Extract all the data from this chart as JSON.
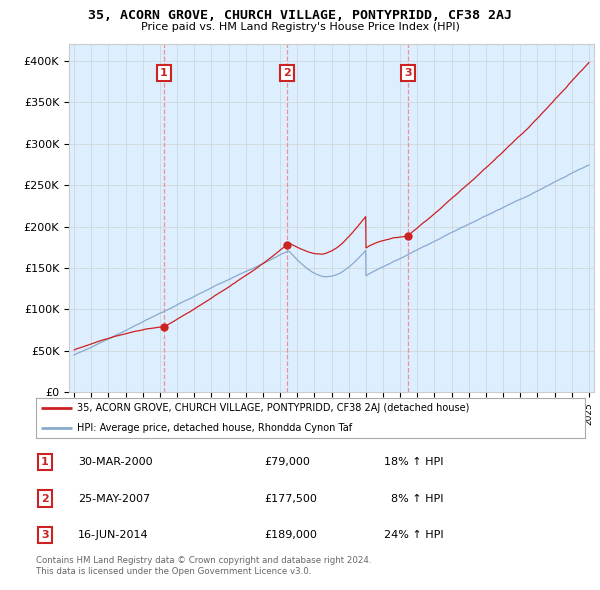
{
  "title": "35, ACORN GROVE, CHURCH VILLAGE, PONTYPRIDD, CF38 2AJ",
  "subtitle": "Price paid vs. HM Land Registry's House Price Index (HPI)",
  "ylim": [
    0,
    420000
  ],
  "yticks": [
    0,
    50000,
    100000,
    150000,
    200000,
    250000,
    300000,
    350000,
    400000
  ],
  "ytick_labels": [
    "£0",
    "£50K",
    "£100K",
    "£150K",
    "£200K",
    "£250K",
    "£300K",
    "£350K",
    "£400K"
  ],
  "sales": [
    {
      "date": "30-MAR-2000",
      "year": 2000.24,
      "price": 79000,
      "label": "1"
    },
    {
      "date": "25-MAY-2007",
      "year": 2007.4,
      "price": 177500,
      "label": "2"
    },
    {
      "date": "16-JUN-2014",
      "year": 2014.46,
      "price": 189000,
      "label": "3"
    }
  ],
  "red_line_color": "#cc2222",
  "blue_line_color": "#88aacc",
  "sale_dot_color": "#cc2222",
  "vline_color": "#ee8888",
  "grid_color": "#cccccc",
  "chart_bg_color": "#ddeeff",
  "background_color": "#ffffff",
  "legend_border_color": "#aaaaaa",
  "footer_text": "Contains HM Land Registry data © Crown copyright and database right 2024.\nThis data is licensed under the Open Government Licence v3.0.",
  "legend_entry1": "35, ACORN GROVE, CHURCH VILLAGE, PONTYPRIDD, CF38 2AJ (detached house)",
  "legend_entry2": "HPI: Average price, detached house, Rhondda Cynon Taf",
  "table_rows": [
    {
      "num": "1",
      "date": "30-MAR-2000",
      "price": "£79,000",
      "hpi": "18% ↑ HPI"
    },
    {
      "num": "2",
      "date": "25-MAY-2007",
      "price": "£177,500",
      "hpi": "  8% ↑ HPI"
    },
    {
      "num": "3",
      "date": "16-JUN-2014",
      "price": "£189,000",
      "hpi": "24% ↑ HPI"
    }
  ]
}
